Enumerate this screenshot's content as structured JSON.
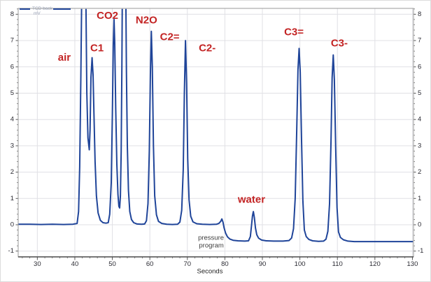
{
  "legend": {
    "series_label": "TCD back",
    "units_label": "mV"
  },
  "colors": {
    "trace": "#1f4499",
    "peak_label": "#c32424",
    "grid": "#e0e0e5",
    "frame": "#9a9a9a",
    "axis": "#555555",
    "tick_text": "#2b2b33",
    "annotation": "#3c3c3c",
    "legend_text": "#97a0b4",
    "background": "#ffffff"
  },
  "chart_data": {
    "type": "line",
    "title": "",
    "xlabel": "Seconds",
    "ylabel": "",
    "x_ticks": [
      30,
      40,
      50,
      60,
      70,
      80,
      90,
      100,
      110,
      120,
      130
    ],
    "y_ticks": [
      -1,
      0,
      1,
      2,
      3,
      4,
      5,
      6,
      7,
      8
    ],
    "x_range": [
      24.9,
      130.3
    ],
    "y_range": [
      -1.22,
      8.22
    ],
    "grid": true,
    "legend_position": "top-left",
    "baseline_shift": {
      "from_mV": 0,
      "to_mV": -0.62,
      "at_s": 79.5,
      "label": "pressure program"
    },
    "peaks": [
      {
        "label": "air",
        "retention_s": 42.4,
        "apex_mV": null,
        "clipped": true
      },
      {
        "label": "C1",
        "retention_s": 44.6,
        "apex_mV": 6.35,
        "clipped": false
      },
      {
        "label": "CO2",
        "retention_s": 50.4,
        "apex_mV": 7.8,
        "clipped": false
      },
      {
        "label": "N2O",
        "retention_s": 53.1,
        "apex_mV": null,
        "clipped": true
      },
      {
        "label": "C2=",
        "retention_s": 60.4,
        "apex_mV": 7.35,
        "clipped": false
      },
      {
        "label": "C2-",
        "retention_s": 69.5,
        "apex_mV": 7.0,
        "clipped": false
      },
      {
        "label": "water",
        "retention_s": 87.6,
        "apex_mV": 0.5,
        "clipped": false
      },
      {
        "label": "C3=",
        "retention_s": 99.8,
        "apex_mV": 6.7,
        "clipped": false
      },
      {
        "label": "C3-",
        "retention_s": 108.9,
        "apex_mV": 6.45,
        "clipped": false
      }
    ],
    "peak_labels": [
      {
        "text": "air",
        "t": 37.2,
        "v": 6.35
      },
      {
        "text": "C1",
        "t": 45.9,
        "v": 6.71
      },
      {
        "text": "CO2",
        "t": 48.7,
        "v": 7.95
      },
      {
        "text": "N2O",
        "t": 59.1,
        "v": 7.77
      },
      {
        "text": "C2=",
        "t": 65.3,
        "v": 7.13
      },
      {
        "text": "C2-",
        "t": 75.3,
        "v": 6.71
      },
      {
        "text": "water",
        "t": 87.1,
        "v": 0.95
      },
      {
        "text": "C3=",
        "t": 98.4,
        "v": 7.32
      },
      {
        "text": "C3-",
        "t": 110.5,
        "v": 6.9
      }
    ],
    "annotations": [
      {
        "text": "pressure",
        "t": 76.3,
        "v": -0.5
      },
      {
        "text": "program",
        "t": 76.4,
        "v": -0.8
      }
    ],
    "series": [
      {
        "name": "TCD back",
        "units": "mV",
        "color": "#1f4499",
        "points": [
          [
            24.9,
            0.02
          ],
          [
            28,
            0.02
          ],
          [
            31,
            0.01
          ],
          [
            34,
            0.02
          ],
          [
            37,
            0.01
          ],
          [
            39.5,
            0.02
          ],
          [
            40.6,
            0.05
          ],
          [
            41.0,
            0.5
          ],
          [
            41.3,
            2.2
          ],
          [
            41.6,
            5.5
          ],
          [
            41.85,
            9
          ],
          [
            42.0,
            12
          ],
          [
            42.75,
            12
          ],
          [
            42.95,
            8.5
          ],
          [
            43.2,
            5.0
          ],
          [
            43.5,
            3.3
          ],
          [
            43.85,
            2.85
          ],
          [
            44.05,
            3.6
          ],
          [
            44.3,
            5.6
          ],
          [
            44.6,
            6.35
          ],
          [
            44.85,
            5.7
          ],
          [
            45.1,
            4.2
          ],
          [
            45.4,
            2.4
          ],
          [
            45.75,
            1.1
          ],
          [
            46.2,
            0.45
          ],
          [
            46.8,
            0.17
          ],
          [
            47.5,
            0.08
          ],
          [
            48.3,
            0.06
          ],
          [
            48.9,
            0.08
          ],
          [
            49.3,
            0.4
          ],
          [
            49.7,
            1.6
          ],
          [
            50.0,
            4.2
          ],
          [
            50.25,
            6.8
          ],
          [
            50.45,
            7.8
          ],
          [
            50.65,
            6.9
          ],
          [
            50.9,
            4.4
          ],
          [
            51.2,
            2.3
          ],
          [
            51.5,
            1.15
          ],
          [
            51.75,
            0.7
          ],
          [
            51.95,
            0.64
          ],
          [
            52.15,
            1.1
          ],
          [
            52.35,
            2.8
          ],
          [
            52.55,
            6
          ],
          [
            52.7,
            9.5
          ],
          [
            52.8,
            12
          ],
          [
            53.4,
            12
          ],
          [
            53.55,
            9.5
          ],
          [
            53.75,
            5.8
          ],
          [
            54.0,
            3.0
          ],
          [
            54.3,
            1.3
          ],
          [
            54.65,
            0.5
          ],
          [
            55.1,
            0.2
          ],
          [
            55.7,
            0.08
          ],
          [
            56.6,
            0.03
          ],
          [
            57.8,
            0.02
          ],
          [
            58.6,
            0.03
          ],
          [
            59.1,
            0.15
          ],
          [
            59.5,
            0.8
          ],
          [
            59.85,
            2.8
          ],
          [
            60.15,
            5.8
          ],
          [
            60.4,
            7.35
          ],
          [
            60.65,
            6.0
          ],
          [
            60.95,
            3.0
          ],
          [
            61.3,
            1.1
          ],
          [
            61.75,
            0.38
          ],
          [
            62.3,
            0.13
          ],
          [
            63.2,
            0.05
          ],
          [
            64.5,
            0.02
          ],
          [
            66,
            0.01
          ],
          [
            67.4,
            0.02
          ],
          [
            68.0,
            0.1
          ],
          [
            68.5,
            0.55
          ],
          [
            68.9,
            2.1
          ],
          [
            69.2,
            5.0
          ],
          [
            69.5,
            7.0
          ],
          [
            69.8,
            5.4
          ],
          [
            70.1,
            2.5
          ],
          [
            70.45,
            0.95
          ],
          [
            70.9,
            0.32
          ],
          [
            71.5,
            0.11
          ],
          [
            72.5,
            0.04
          ],
          [
            74,
            0.02
          ],
          [
            76,
            0.01
          ],
          [
            77.8,
            0.02
          ],
          [
            78.4,
            0.05
          ],
          [
            78.9,
            0.13
          ],
          [
            79.2,
            0.22
          ],
          [
            79.5,
            0.1
          ],
          [
            79.8,
            -0.12
          ],
          [
            80.2,
            -0.32
          ],
          [
            80.7,
            -0.46
          ],
          [
            81.3,
            -0.54
          ],
          [
            82.2,
            -0.59
          ],
          [
            83.5,
            -0.61
          ],
          [
            85.3,
            -0.62
          ],
          [
            86.3,
            -0.61
          ],
          [
            86.8,
            -0.45
          ],
          [
            87.1,
            -0.02
          ],
          [
            87.35,
            0.33
          ],
          [
            87.6,
            0.5
          ],
          [
            87.85,
            0.28
          ],
          [
            88.15,
            -0.12
          ],
          [
            88.5,
            -0.38
          ],
          [
            89.0,
            -0.51
          ],
          [
            89.8,
            -0.58
          ],
          [
            91,
            -0.61
          ],
          [
            93,
            -0.62
          ],
          [
            95.5,
            -0.62
          ],
          [
            97.1,
            -0.6
          ],
          [
            97.8,
            -0.5
          ],
          [
            98.3,
            -0.15
          ],
          [
            98.75,
            1.0
          ],
          [
            99.15,
            3.6
          ],
          [
            99.5,
            5.9
          ],
          [
            99.8,
            6.7
          ],
          [
            100.1,
            5.8
          ],
          [
            100.45,
            3.2
          ],
          [
            100.8,
            0.9
          ],
          [
            101.2,
            -0.2
          ],
          [
            101.7,
            -0.45
          ],
          [
            102.4,
            -0.56
          ],
          [
            103.4,
            -0.61
          ],
          [
            105,
            -0.63
          ],
          [
            106.3,
            -0.62
          ],
          [
            106.95,
            -0.55
          ],
          [
            107.45,
            -0.25
          ],
          [
            107.9,
            0.8
          ],
          [
            108.3,
            3.2
          ],
          [
            108.6,
            5.6
          ],
          [
            108.9,
            6.45
          ],
          [
            109.2,
            5.5
          ],
          [
            109.55,
            2.9
          ],
          [
            109.9,
            0.65
          ],
          [
            110.3,
            -0.27
          ],
          [
            110.8,
            -0.48
          ],
          [
            111.6,
            -0.57
          ],
          [
            112.8,
            -0.62
          ],
          [
            114.5,
            -0.64
          ],
          [
            117,
            -0.64
          ],
          [
            120,
            -0.64
          ],
          [
            123,
            -0.64
          ],
          [
            126,
            -0.64
          ],
          [
            130,
            -0.64
          ]
        ]
      }
    ]
  }
}
